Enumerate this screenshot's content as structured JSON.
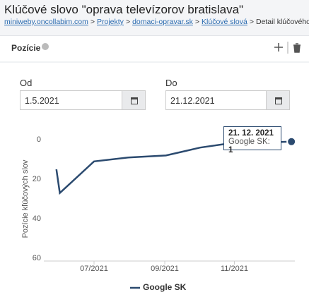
{
  "page_title": "Klúčové slovo \"oprava televízorov bratislava\"",
  "breadcrumb": [
    "miniweby.oncollabim.com",
    "Projekty",
    "domaci-opravar.sk",
    "Klúčové slová",
    "Detail klúčového slova"
  ],
  "breadcrumb_separator": ">",
  "panel_title": "Pozície",
  "date_from": {
    "label": "Od",
    "value": "1.5.2021"
  },
  "date_to": {
    "label": "Do",
    "value": "21.12.2021"
  },
  "tooltip": {
    "date": "21. 12. 2021",
    "label": "Google SK:"
  },
  "chart_data": {
    "type": "line",
    "ylabel": "Pozície kľúčových slov",
    "x": [
      "2021-05-29",
      "2021-06-01",
      "2021-07-01",
      "2021-07-31",
      "2021-09-02",
      "2021-10-02",
      "2021-10-26",
      "2021-12-21"
    ],
    "series": [
      {
        "name": "Google SK",
        "color": "#2b4a6f",
        "values": [
          15,
          27,
          11,
          9,
          8,
          4,
          2,
          1
        ]
      }
    ],
    "xlim": [
      "2021-05-18",
      "2021-12-24"
    ],
    "xticks": [
      {
        "value": "2021-07-01",
        "label": "07/2021"
      },
      {
        "value": "2021-09-01",
        "label": "09/2021"
      },
      {
        "value": "2021-11-01",
        "label": "11/2021"
      }
    ],
    "ylim": [
      0,
      60
    ],
    "yticks": [
      0,
      20,
      40,
      60
    ],
    "y_reversed": true,
    "grid": false
  }
}
